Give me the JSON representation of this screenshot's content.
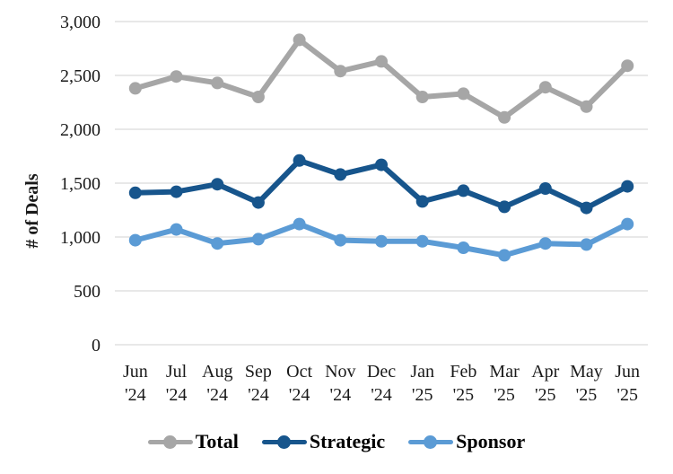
{
  "chart_data": {
    "type": "line",
    "title": "",
    "xlabel": "",
    "ylabel": "# of Deals",
    "categories": [
      "Jun '24",
      "Jul '24",
      "Aug '24",
      "Sep '24",
      "Oct '24",
      "Nov '24",
      "Dec '24",
      "Jan '25",
      "Feb '25",
      "Mar '25",
      "Apr '25",
      "May '25",
      "Jun '25"
    ],
    "series": [
      {
        "name": "Total",
        "color": "#A6A6A6",
        "values": [
          2380,
          2490,
          2430,
          2300,
          2830,
          2540,
          2630,
          2300,
          2330,
          2110,
          2390,
          2210,
          2590
        ]
      },
      {
        "name": "Strategic",
        "color": "#17558C",
        "values": [
          1410,
          1420,
          1490,
          1320,
          1710,
          1580,
          1670,
          1330,
          1430,
          1280,
          1450,
          1270,
          1470
        ]
      },
      {
        "name": "Sponsor",
        "color": "#5B9BD5",
        "values": [
          970,
          1070,
          940,
          980,
          1120,
          970,
          960,
          960,
          900,
          830,
          940,
          930,
          1120
        ]
      }
    ],
    "ylim": [
      0,
      3000
    ],
    "ytick_interval": 500,
    "ytick_labels": [
      "0",
      "500",
      "1,000",
      "1,500",
      "2,000",
      "2,500",
      "3,000"
    ],
    "grid": "horizontal",
    "gridline_color": "#D9D9D9",
    "legend_position": "bottom"
  }
}
